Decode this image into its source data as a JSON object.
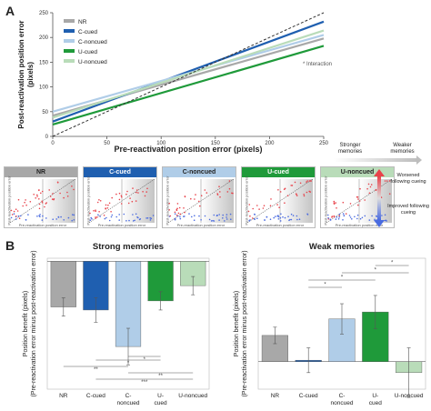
{
  "panels": {
    "a_label": "A",
    "b_label": "B"
  },
  "chart_data": [
    {
      "type": "line",
      "xlabel": "Pre-reactivation position error (pixels)",
      "ylabel": "Post-reactivation position error\n(pixels)",
      "xlim": [
        0,
        250
      ],
      "ylim": [
        0,
        250
      ],
      "xticks": [
        0,
        50,
        100,
        150,
        200,
        250
      ],
      "yticks": [
        0,
        50,
        100,
        150,
        200,
        250
      ],
      "annotation": "* Interaction",
      "series": [
        {
          "name": "NR",
          "color": "#a8a8a8",
          "x": [
            0,
            250
          ],
          "y": [
            42,
            198
          ]
        },
        {
          "name": "C-cued",
          "color": "#1f5fb0",
          "x": [
            0,
            250
          ],
          "y": [
            30,
            232
          ]
        },
        {
          "name": "C-noncued",
          "color": "#b0cde8",
          "x": [
            0,
            250
          ],
          "y": [
            50,
            205
          ]
        },
        {
          "name": "U-cued",
          "color": "#1f9a3a",
          "x": [
            0,
            250
          ],
          "y": [
            24,
            183
          ]
        },
        {
          "name": "U-noncued",
          "color": "#b9dcb9",
          "x": [
            0,
            250
          ],
          "y": [
            38,
            214
          ]
        },
        {
          "name": "",
          "color": "#333333",
          "dashed": true,
          "x": [
            0,
            250
          ],
          "y": [
            0,
            250
          ]
        }
      ]
    },
    {
      "type": "scatter",
      "thumbnails": [
        {
          "title": "NR",
          "color": "#a8a8a8",
          "text_color": "#222222"
        },
        {
          "title": "C-cued",
          "color": "#1f5fb0",
          "text_color": "#ffffff"
        },
        {
          "title": "C-noncued",
          "color": "#b0cde8",
          "text_color": "#222222"
        },
        {
          "title": "U-cued",
          "color": "#1f9a3a",
          "text_color": "#ffffff"
        },
        {
          "title": "U-noncued",
          "color": "#b9dcb9",
          "text_color": "#222222"
        }
      ],
      "xlabel": "Pre-reactivation position error",
      "ylabel": "Post-reactivation position error",
      "gradient_top_left": "Stronger memories",
      "gradient_top_right": "Weaker memories",
      "legend_worsened": "Worsened following cueing",
      "legend_improved": "Improved following cueing"
    },
    {
      "type": "bar",
      "title": "Strong memories",
      "ylabel": "Position benefit (pixels)",
      "ylabel2": "(Pre-reactivation error minus post-reactivation error)",
      "ylim": [
        -42,
        1
      ],
      "categories": [
        "NR",
        "C-cued",
        "C-\nnoncued",
        "U-\ncued",
        "U-noncued"
      ],
      "values": [
        -15,
        -16,
        -28,
        -13,
        -8
      ],
      "errors": [
        3,
        4,
        6,
        3,
        3
      ],
      "colors": [
        "#a8a8a8",
        "#1f5fb0",
        "#b0cde8",
        "#1f9a3a",
        "#b9dcb9"
      ],
      "significance": [
        {
          "from": 2,
          "to": 3,
          "label": "*"
        },
        {
          "from": 1,
          "to": 3,
          "label": "*"
        },
        {
          "from": 0,
          "to": 2,
          "label": "**"
        },
        {
          "from": 2,
          "to": 4,
          "label": "**"
        },
        {
          "from": 1,
          "to": 4,
          "label": "***"
        }
      ]
    },
    {
      "type": "bar",
      "title": "Weak memories",
      "ylabel": "Position benefit (pixels)",
      "ylabel2": "(Pre-reactivation error minus post-reactivation error)",
      "ylim": [
        -20,
        75
      ],
      "categories": [
        "NR",
        "C-cued",
        "C-\nnoncued",
        "U-\ncued",
        "U-noncued"
      ],
      "values": [
        19,
        1,
        31,
        36,
        -8
      ],
      "errors": [
        6,
        9,
        11,
        12,
        18
      ],
      "colors": [
        "#a8a8a8",
        "#1f5fb0",
        "#b0cde8",
        "#1f9a3a",
        "#b9dcb9"
      ],
      "significance": [
        {
          "from": 3,
          "to": 4,
          "label": "*"
        },
        {
          "from": 2,
          "to": 4,
          "label": "*"
        },
        {
          "from": 1,
          "to": 3,
          "label": "*"
        },
        {
          "from": 1,
          "to": 2,
          "label": "*"
        }
      ]
    }
  ]
}
